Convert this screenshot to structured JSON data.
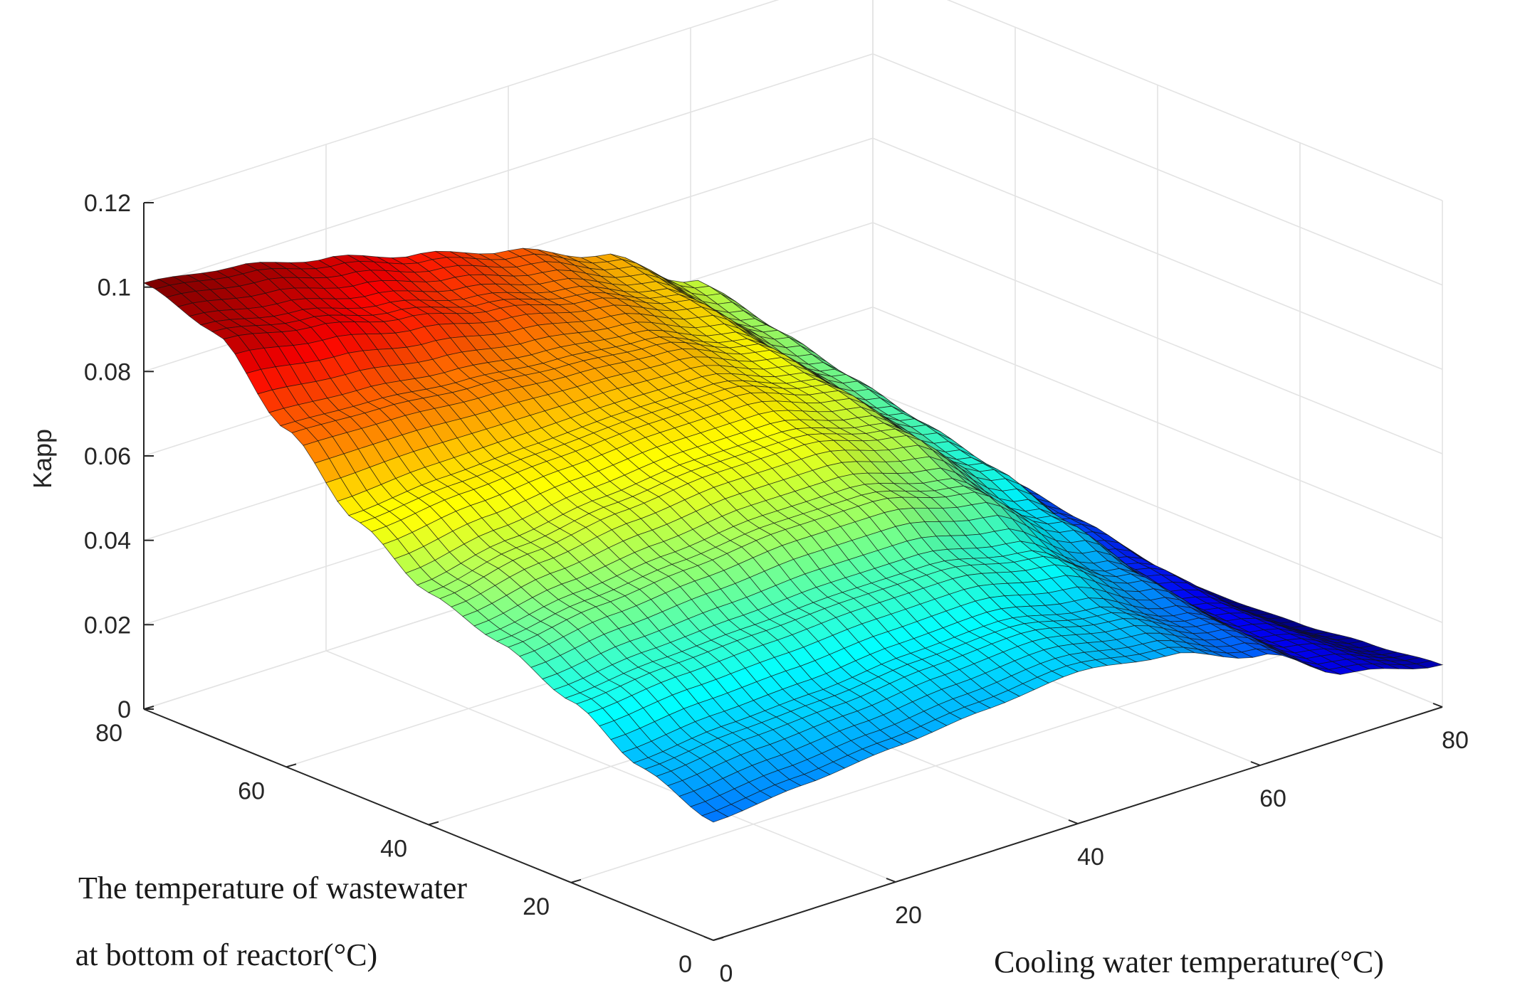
{
  "chart_data": {
    "type": "surface3d",
    "title": "",
    "zlabel": "Kapp",
    "xlabel": "Cooling water temperature(°C)",
    "ylabel_lines": [
      "The temperature of wastewater",
      "at bottom of reactor(°C)"
    ],
    "xlim": [
      0,
      80
    ],
    "ylim": [
      0,
      80
    ],
    "zlim": [
      0,
      0.12
    ],
    "x_ticks": [
      "0",
      "20",
      "40",
      "60",
      "80"
    ],
    "y_ticks": [
      "0",
      "20",
      "40",
      "60",
      "80"
    ],
    "z_ticks": [
      "0",
      "0.02",
      "0.04",
      "0.06",
      "0.08",
      "0.1",
      "0.12"
    ],
    "x_tick_values": [
      0,
      20,
      40,
      60,
      80
    ],
    "y_tick_values": [
      0,
      20,
      40,
      60,
      80
    ],
    "z_tick_values": [
      0,
      0.02,
      0.04,
      0.06,
      0.08,
      0.1,
      0.12
    ],
    "colormap": "jet",
    "grid": true,
    "surface_grid_axis": [
      0,
      10,
      20,
      30,
      40,
      50,
      60,
      70,
      80
    ],
    "surface_z": [
      [
        0.028,
        0.03,
        0.032,
        0.034,
        0.036,
        0.033,
        0.026,
        0.015,
        0.01
      ],
      [
        0.034,
        0.036,
        0.037,
        0.039,
        0.04,
        0.036,
        0.028,
        0.016,
        0.008
      ],
      [
        0.043,
        0.045,
        0.046,
        0.047,
        0.047,
        0.043,
        0.032,
        0.017,
        0.006
      ],
      [
        0.05,
        0.053,
        0.055,
        0.057,
        0.057,
        0.052,
        0.038,
        0.02,
        0.005
      ],
      [
        0.055,
        0.059,
        0.062,
        0.064,
        0.064,
        0.059,
        0.044,
        0.024,
        0.005
      ],
      [
        0.065,
        0.067,
        0.068,
        0.069,
        0.069,
        0.063,
        0.048,
        0.027,
        0.006
      ],
      [
        0.08,
        0.079,
        0.077,
        0.075,
        0.073,
        0.066,
        0.052,
        0.03,
        0.007
      ],
      [
        0.096,
        0.092,
        0.087,
        0.082,
        0.077,
        0.07,
        0.056,
        0.034,
        0.008
      ],
      [
        0.101,
        0.098,
        0.093,
        0.087,
        0.081,
        0.073,
        0.06,
        0.037,
        0.009
      ]
    ]
  }
}
